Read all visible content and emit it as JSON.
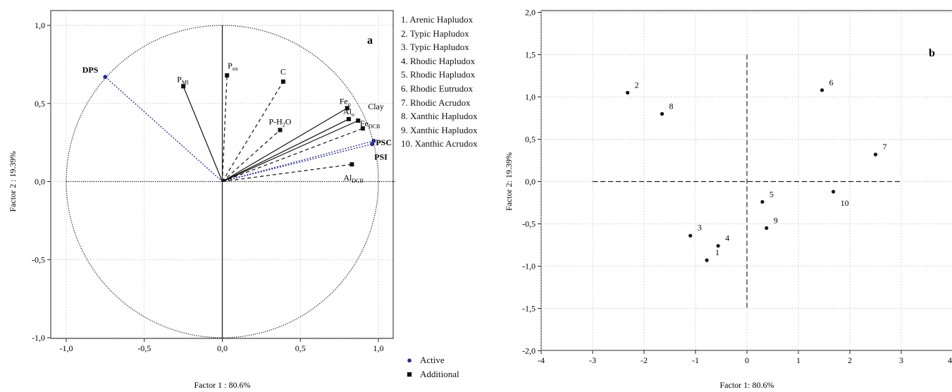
{
  "chart_data": [
    {
      "panel": "a",
      "type": "scatter",
      "xlabel": "Factor 1 : 80.6%",
      "ylabel": "Factor 2 : 19.39%",
      "xlim": [
        -1.1,
        1.1
      ],
      "ylim": [
        -1.1,
        1.1
      ],
      "xticks": [
        "-1,0",
        "-0,5",
        "0,0",
        "0,5",
        "1,0"
      ],
      "yticks": [
        "1,0",
        "0,5",
        "0,0",
        "-0,5",
        "-1,0"
      ],
      "grid": true,
      "unit_circle": true,
      "points": [
        {
          "label": "DPS",
          "x": -0.75,
          "y": 0.67,
          "group": "Active",
          "line": "dotted-blue",
          "bold": true
        },
        {
          "label": "PSC",
          "x": 0.97,
          "y": 0.26,
          "group": "Active",
          "line": "dotted-blue",
          "bold": true
        },
        {
          "label": "PSI",
          "x": 0.96,
          "y": 0.24,
          "group": "Active",
          "line": "dotted-blue",
          "bold": true
        },
        {
          "label": "P",
          "sub": "MI",
          "x": -0.25,
          "y": 0.61,
          "group": "Additional",
          "line": "solid"
        },
        {
          "label": "P",
          "sub": "ox",
          "x": 0.03,
          "y": 0.68,
          "group": "Additional",
          "line": "dashed"
        },
        {
          "label": "C",
          "x": 0.39,
          "y": 0.64,
          "group": "Additional",
          "line": "dashed"
        },
        {
          "label": "P-H",
          "sub": "2",
          "suffix": "O",
          "x": 0.37,
          "y": 0.33,
          "group": "Additional",
          "line": "dashed"
        },
        {
          "label": "Fe",
          "sub": "o",
          "x": 0.8,
          "y": 0.47,
          "group": "Additional",
          "line": "solid"
        },
        {
          "label": "Al",
          "sub": "o",
          "x": 0.81,
          "y": 0.4,
          "group": "Additional",
          "line": "solid"
        },
        {
          "label": "Clay",
          "x": 0.87,
          "y": 0.39,
          "group": "Additional",
          "line": "solid"
        },
        {
          "label": "Fe",
          "sub": "DCB",
          "x": 0.9,
          "y": 0.34,
          "group": "Additional",
          "line": "dashed"
        },
        {
          "label": "Al",
          "sub": "DCB",
          "x": 0.83,
          "y": 0.11,
          "group": "Additional",
          "line": "dashed"
        }
      ],
      "legend": [
        {
          "marker": "circle",
          "label": "Active",
          "color": "#2b2b8f"
        },
        {
          "marker": "square",
          "label": "Additional",
          "color": "#111111"
        }
      ]
    },
    {
      "panel": "b",
      "type": "scatter",
      "xlabel": "Factor 1: 80.6%",
      "ylabel": "Factor 2: 19.39%",
      "xlim": [
        -4,
        4
      ],
      "ylim": [
        -2.0,
        2.0
      ],
      "xticks": [
        "-4",
        "-3",
        "-2",
        "-1",
        "0",
        "1",
        "2",
        "3",
        "4"
      ],
      "yticks": [
        "2,0",
        "1,5",
        "1,0",
        "0,5",
        "0,0",
        "-0,5",
        "-1,0",
        "-1,5",
        "-2,0"
      ],
      "grid": true,
      "points": [
        {
          "label": "1",
          "x": -0.78,
          "y": -0.93
        },
        {
          "label": "2",
          "x": -2.32,
          "y": 1.05
        },
        {
          "label": "3",
          "x": -1.1,
          "y": -0.64
        },
        {
          "label": "4",
          "x": -0.56,
          "y": -0.76
        },
        {
          "label": "5",
          "x": 0.3,
          "y": -0.24
        },
        {
          "label": "6",
          "x": 1.46,
          "y": 1.08
        },
        {
          "label": "7",
          "x": 2.5,
          "y": 0.32
        },
        {
          "label": "8",
          "x": -1.65,
          "y": 0.8
        },
        {
          "label": "9",
          "x": 0.38,
          "y": -0.55
        },
        {
          "label": "10",
          "x": 1.68,
          "y": -0.12
        }
      ],
      "soil_legend": [
        "1. Arenic Hapludox",
        "2. Typic Hapludox",
        "3. Typic Hapludox",
        "4. Rhodic Hapludox",
        "5. Rhodic Hapludox",
        "6. Rhodic Eutrudox",
        "7. Rhodic Acrudox",
        "8. Xanthic Hapludox",
        "9. Xanthic Hapludox",
        "10. Xanthic Acrudox"
      ]
    }
  ],
  "colors": {
    "active": "#2b2b8f",
    "additional": "#111111",
    "grid": "#b8b8b8"
  }
}
